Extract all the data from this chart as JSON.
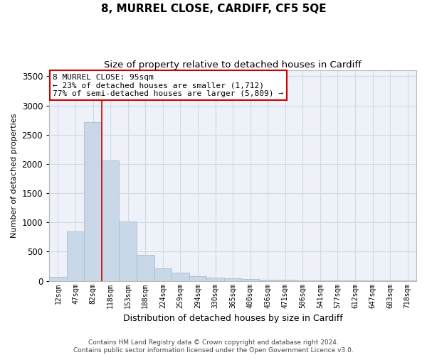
{
  "title": "8, MURREL CLOSE, CARDIFF, CF5 5QE",
  "subtitle": "Size of property relative to detached houses in Cardiff",
  "xlabel": "Distribution of detached houses by size in Cardiff",
  "ylabel": "Number of detached properties",
  "bar_color": "#c8d8e8",
  "bar_edgecolor": "#aabccc",
  "grid_color": "#d0d8e8",
  "background_color": "#eef2f8",
  "categories": [
    "12sqm",
    "47sqm",
    "82sqm",
    "118sqm",
    "153sqm",
    "188sqm",
    "224sqm",
    "259sqm",
    "294sqm",
    "330sqm",
    "365sqm",
    "400sqm",
    "436sqm",
    "471sqm",
    "506sqm",
    "541sqm",
    "577sqm",
    "612sqm",
    "647sqm",
    "683sqm",
    "718sqm"
  ],
  "values": [
    70,
    840,
    2720,
    2060,
    1010,
    440,
    210,
    140,
    75,
    55,
    40,
    30,
    20,
    15,
    10,
    8,
    6,
    5,
    4,
    3,
    2
  ],
  "ylim": [
    0,
    3600
  ],
  "yticks": [
    0,
    500,
    1000,
    1500,
    2000,
    2500,
    3000,
    3500
  ],
  "property_line_x": 2.5,
  "annotation_text": "8 MURREL CLOSE: 95sqm\n← 23% of detached houses are smaller (1,712)\n77% of semi-detached houses are larger (5,809) →",
  "annotation_box_color": "#ffffff",
  "annotation_box_edgecolor": "#cc0000",
  "footer_line1": "Contains HM Land Registry data © Crown copyright and database right 2024.",
  "footer_line2": "Contains public sector information licensed under the Open Government Licence v3.0."
}
